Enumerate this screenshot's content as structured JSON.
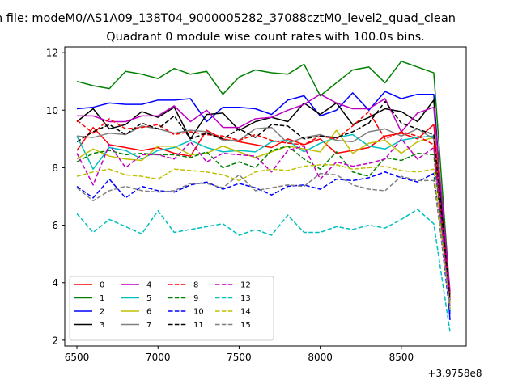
{
  "figure": {
    "suptitle": "n file: modeM0/AS1A09_138T04_9000005282_37088cztM0_level2_quad_clean",
    "title": "Quadrant 0 module wise count rates with 100.0s bins."
  },
  "chart_data": {
    "type": "line",
    "title": "Quadrant 0 module wise count rates with 100.0s bins.",
    "xlabel": "",
    "ylabel": "",
    "x_offset_label": "+3.9758e8",
    "xlim": [
      6425,
      8900
    ],
    "ylim": [
      1.8,
      12.2
    ],
    "xticks": [
      6500,
      7000,
      7500,
      8000,
      8500
    ],
    "xtick_labels": [
      "6500",
      "7000",
      "7500",
      "8000",
      "8500"
    ],
    "yticks": [
      2,
      4,
      6,
      8,
      10,
      12
    ],
    "ytick_labels": [
      "2",
      "4",
      "6",
      "8",
      "10",
      "12"
    ],
    "grid": false,
    "legend_position": "lower-left",
    "x": [
      6500,
      6600,
      6700,
      6800,
      6900,
      7000,
      7100,
      7200,
      7300,
      7400,
      7500,
      7600,
      7700,
      7800,
      7900,
      8000,
      8100,
      8200,
      8300,
      8400,
      8500,
      8600,
      8700,
      8800
    ],
    "series": [
      {
        "name": "0",
        "color": "#ff0000",
        "dash": "solid",
        "values": [
          8.6,
          9.4,
          8.8,
          8.7,
          8.6,
          8.7,
          8.5,
          8.4,
          9.3,
          9.0,
          8.9,
          8.8,
          8.7,
          9.0,
          8.8,
          9.0,
          8.5,
          8.6,
          8.7,
          9.1,
          9.2,
          9.0,
          9.5,
          3.4
        ]
      },
      {
        "name": "1",
        "color": "#008000",
        "dash": "solid",
        "values": [
          11.0,
          10.85,
          10.75,
          11.35,
          11.25,
          11.1,
          11.45,
          11.25,
          11.35,
          10.55,
          11.15,
          11.4,
          11.3,
          11.25,
          11.6,
          10.5,
          10.95,
          11.4,
          11.5,
          10.95,
          11.7,
          11.5,
          11.3,
          3.6
        ]
      },
      {
        "name": "2",
        "color": "#0000ff",
        "dash": "solid",
        "values": [
          10.05,
          10.1,
          10.25,
          10.2,
          10.2,
          10.35,
          10.35,
          10.4,
          9.6,
          10.1,
          10.1,
          10.05,
          9.85,
          10.35,
          10.5,
          9.8,
          10.0,
          10.6,
          10.0,
          10.65,
          10.4,
          10.55,
          10.55,
          2.7
        ]
      },
      {
        "name": "3",
        "color": "#000000",
        "dash": "solid",
        "values": [
          9.6,
          10.05,
          9.35,
          9.5,
          9.95,
          9.75,
          10.1,
          9.0,
          9.85,
          9.9,
          9.3,
          9.6,
          9.75,
          9.6,
          10.25,
          9.85,
          10.25,
          9.5,
          9.75,
          10.05,
          9.95,
          9.6,
          10.35,
          3.0
        ]
      },
      {
        "name": "4",
        "color": "#c000c0",
        "dash": "solid",
        "values": [
          9.8,
          9.8,
          9.6,
          9.6,
          9.8,
          9.8,
          10.15,
          9.6,
          10.0,
          9.4,
          9.4,
          9.7,
          9.75,
          10.0,
          10.2,
          10.55,
          10.25,
          10.05,
          10.05,
          10.4,
          9.25,
          9.9,
          10.1,
          3.7
        ]
      },
      {
        "name": "5",
        "color": "#00bfbf",
        "dash": "solid",
        "values": [
          9.1,
          7.95,
          8.7,
          8.6,
          8.3,
          8.6,
          8.7,
          8.95,
          8.7,
          8.55,
          8.6,
          8.55,
          8.9,
          8.95,
          8.55,
          8.85,
          9.05,
          9.15,
          8.75,
          8.65,
          8.95,
          9.05,
          9.1,
          3.0
        ]
      },
      {
        "name": "6",
        "color": "#bfbf00",
        "dash": "solid",
        "values": [
          8.3,
          8.65,
          8.4,
          8.3,
          8.25,
          8.75,
          8.75,
          8.45,
          8.5,
          8.75,
          8.55,
          8.35,
          8.55,
          8.75,
          8.65,
          8.55,
          9.3,
          8.5,
          8.85,
          8.95,
          8.5,
          8.9,
          9.05,
          3.2
        ]
      },
      {
        "name": "7",
        "color": "#808080",
        "dash": "solid",
        "values": [
          9.1,
          9.05,
          9.2,
          9.15,
          9.45,
          9.35,
          9.2,
          9.3,
          9.25,
          8.95,
          8.95,
          9.35,
          9.4,
          8.85,
          9.05,
          9.15,
          8.95,
          8.9,
          9.25,
          9.35,
          9.1,
          9.35,
          9.0,
          3.3
        ]
      },
      {
        "name": "8",
        "color": "#ff0000",
        "dash": "dashed",
        "values": [
          9.65,
          9.2,
          9.7,
          9.35,
          9.4,
          9.5,
          9.15,
          9.25,
          9.15,
          9.1,
          8.95,
          9.15,
          8.95,
          8.85,
          8.8,
          9.1,
          9.0,
          9.45,
          9.95,
          9.0,
          9.25,
          9.1,
          8.8,
          3.5
        ]
      },
      {
        "name": "9",
        "color": "#008000",
        "dash": "dashed",
        "values": [
          8.2,
          8.5,
          8.6,
          8.45,
          8.5,
          8.45,
          8.45,
          8.35,
          8.55,
          8.0,
          8.2,
          8.0,
          8.6,
          8.75,
          8.3,
          7.95,
          8.55,
          7.85,
          7.7,
          8.35,
          8.25,
          8.5,
          8.45,
          3.1
        ]
      },
      {
        "name": "10",
        "color": "#0000ff",
        "dash": "dashed",
        "values": [
          7.35,
          6.95,
          7.6,
          6.95,
          7.35,
          7.2,
          7.15,
          7.4,
          7.5,
          7.25,
          7.45,
          7.3,
          7.05,
          7.35,
          7.4,
          7.25,
          7.6,
          7.55,
          7.65,
          7.85,
          7.65,
          7.5,
          7.8,
          2.9
        ]
      },
      {
        "name": "11",
        "color": "#000000",
        "dash": "dashed",
        "values": [
          8.9,
          9.25,
          9.5,
          9.15,
          9.55,
          9.35,
          9.8,
          9.0,
          9.2,
          9.0,
          9.35,
          9.05,
          9.5,
          9.45,
          9.0,
          9.1,
          9.05,
          9.25,
          9.55,
          10.3,
          9.55,
          9.35,
          9.15,
          3.4
        ]
      },
      {
        "name": "12",
        "color": "#c000c0",
        "dash": "dashed",
        "values": [
          8.5,
          7.4,
          8.8,
          8.0,
          8.45,
          8.45,
          8.3,
          8.9,
          8.2,
          8.5,
          8.45,
          8.4,
          7.85,
          8.6,
          8.75,
          7.6,
          8.2,
          8.05,
          8.15,
          8.3,
          9.0,
          8.3,
          8.7,
          3.1
        ]
      },
      {
        "name": "13",
        "color": "#00bfbf",
        "dash": "dashed",
        "values": [
          6.4,
          5.75,
          6.2,
          5.95,
          5.7,
          6.5,
          5.75,
          5.85,
          5.95,
          6.05,
          5.65,
          5.85,
          5.65,
          6.35,
          5.75,
          5.75,
          5.95,
          5.85,
          6.0,
          5.9,
          6.2,
          6.55,
          6.05,
          2.3
        ]
      },
      {
        "name": "14",
        "color": "#bfbf00",
        "dash": "dashed",
        "values": [
          7.7,
          7.85,
          7.95,
          7.75,
          7.7,
          7.6,
          7.95,
          7.9,
          7.85,
          7.75,
          7.55,
          7.85,
          7.95,
          7.9,
          8.05,
          8.1,
          8.1,
          7.95,
          8.0,
          8.05,
          7.9,
          7.85,
          7.95,
          3.1
        ]
      },
      {
        "name": "15",
        "color": "#808080",
        "dash": "dashed",
        "values": [
          7.3,
          6.85,
          7.2,
          7.35,
          7.2,
          7.15,
          7.2,
          7.45,
          7.45,
          7.3,
          7.75,
          7.2,
          7.3,
          7.4,
          7.35,
          7.8,
          7.75,
          7.4,
          7.25,
          7.2,
          7.7,
          7.55,
          7.55,
          3.2
        ]
      }
    ]
  }
}
